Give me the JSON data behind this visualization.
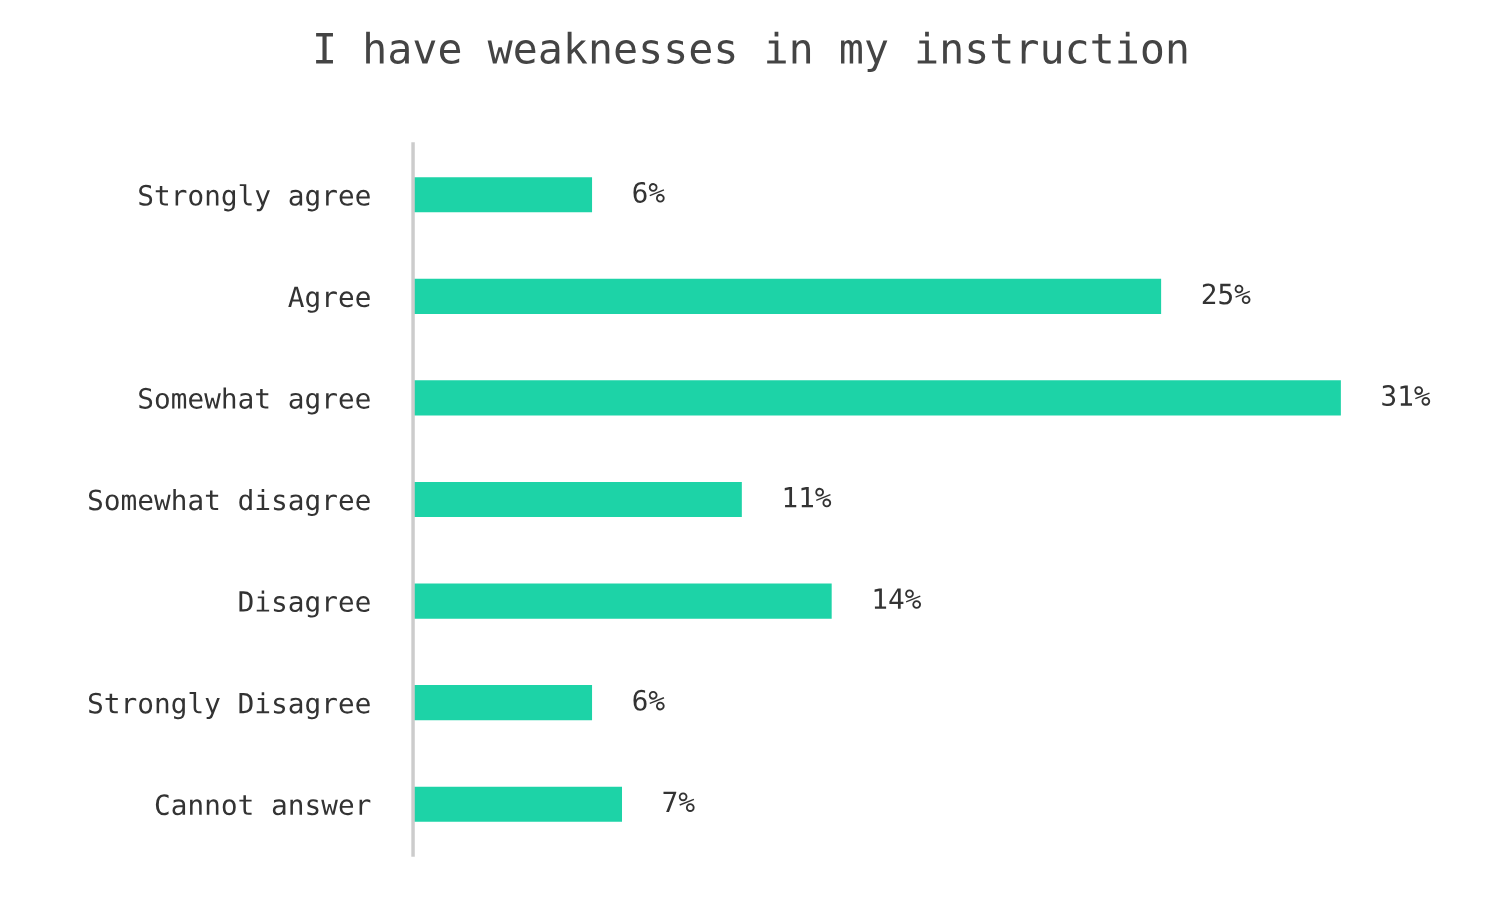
{
  "chart_data": {
    "type": "bar",
    "orientation": "horizontal",
    "title": "I have weaknesses in my instruction",
    "categories": [
      "Strongly agree",
      "Agree",
      "Somewhat agree",
      "Somewhat disagree",
      "Disagree",
      "Strongly Disagree",
      "Cannot answer"
    ],
    "values": [
      6,
      25,
      31,
      11,
      14,
      6,
      7
    ],
    "value_labels": [
      "6%",
      "25%",
      "31%",
      "11%",
      "14%",
      "6%",
      "7%"
    ],
    "color": "#1dd3a7",
    "grid": false,
    "legend": false
  }
}
